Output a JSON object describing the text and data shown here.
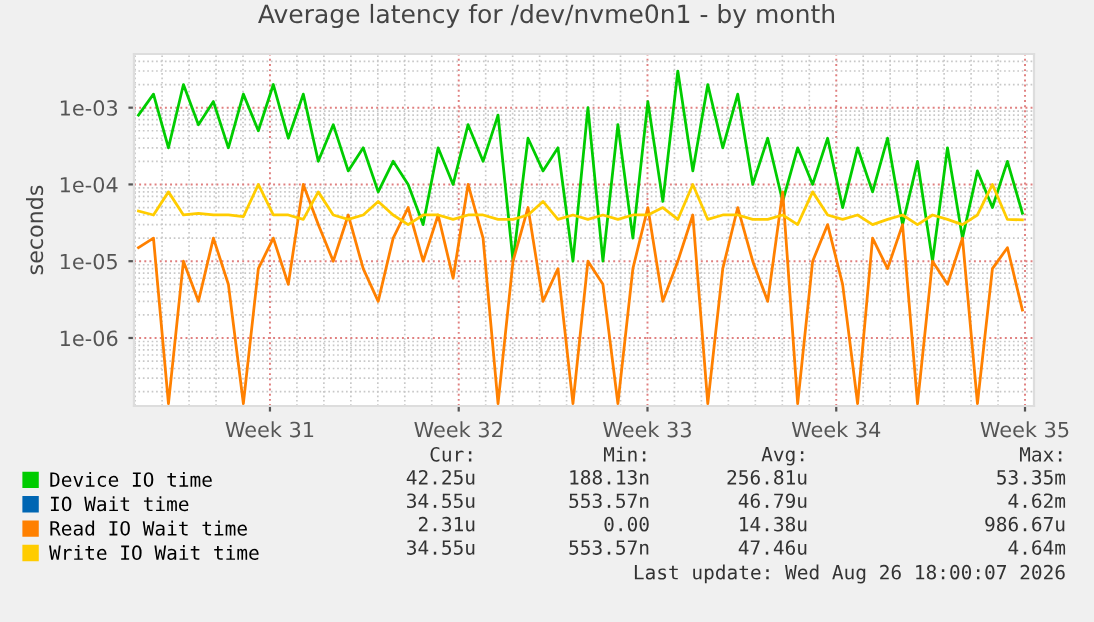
{
  "chart_data": {
    "type": "line",
    "title": "Average latency for /dev/nvme0n1 - by month",
    "ylabel": "seconds",
    "x": [
      "2026-07-22T03:00",
      "2026-07-22T16:20",
      "2026-07-23T05:40",
      "2026-07-23T19:00",
      "2026-07-24T08:20",
      "2026-07-24T21:40",
      "2026-07-25T11:00",
      "2026-07-26T00:20",
      "2026-07-26T13:40",
      "2026-07-27T03:00",
      "2026-07-27T16:20",
      "2026-07-28T05:40",
      "2026-07-28T19:00",
      "2026-07-29T08:20",
      "2026-07-29T21:40",
      "2026-07-30T11:00",
      "2026-07-31T00:20",
      "2026-07-31T13:40",
      "2026-08-01T03:00",
      "2026-08-01T16:20",
      "2026-08-02T05:40",
      "2026-08-02T19:00",
      "2026-08-03T08:20",
      "2026-08-03T21:40",
      "2026-08-04T11:00",
      "2026-08-05T00:20",
      "2026-08-05T13:40",
      "2026-08-06T03:00",
      "2026-08-06T16:20",
      "2026-08-07T05:40",
      "2026-08-07T19:00",
      "2026-08-08T08:20",
      "2026-08-08T21:40",
      "2026-08-09T11:00",
      "2026-08-10T00:20",
      "2026-08-10T13:40",
      "2026-08-11T03:00",
      "2026-08-11T16:20",
      "2026-08-12T05:40",
      "2026-08-12T19:00",
      "2026-08-13T08:20",
      "2026-08-13T21:40",
      "2026-08-14T11:00",
      "2026-08-15T00:20",
      "2026-08-15T13:40",
      "2026-08-16T03:00",
      "2026-08-16T16:20",
      "2026-08-17T05:40",
      "2026-08-17T19:00",
      "2026-08-18T08:20",
      "2026-08-18T21:40",
      "2026-08-19T11:00",
      "2026-08-20T00:20",
      "2026-08-20T13:40",
      "2026-08-21T03:00",
      "2026-08-21T16:20",
      "2026-08-22T05:40",
      "2026-08-22T19:00",
      "2026-08-23T08:20",
      "2026-08-23T21:40"
    ],
    "series": [
      {
        "name": "Device IO time",
        "color": "#00cc00",
        "values": [
          0.0008,
          0.0015,
          0.0003,
          0.002,
          0.0006,
          0.0012,
          0.0003,
          0.0015,
          0.0005,
          0.002,
          0.0004,
          0.0015,
          0.0002,
          0.0006,
          0.00015,
          0.0003,
          8e-05,
          0.0002,
          0.0001,
          3e-05,
          0.0003,
          0.0001,
          0.0006,
          0.0002,
          0.0008,
          1e-05,
          0.0004,
          0.00015,
          0.0003,
          1e-05,
          0.001,
          1e-05,
          0.0006,
          2e-05,
          0.0012,
          6e-05,
          0.003,
          0.00015,
          0.002,
          0.0003,
          0.0015,
          0.0001,
          0.0004,
          6e-05,
          0.0003,
          0.0001,
          0.0004,
          5e-05,
          0.0003,
          8e-05,
          0.0004,
          3e-05,
          0.0002,
          1e-05,
          0.0003,
          2e-05,
          0.00015,
          5e-05,
          0.0002,
          4.225e-05
        ]
      },
      {
        "name": "IO Wait time",
        "color": "#0066b3",
        "values": [
          null,
          null,
          null,
          null,
          null,
          null,
          null,
          null,
          null,
          null,
          null,
          null,
          null,
          null,
          null,
          null,
          null,
          null,
          null,
          null,
          null,
          null,
          null,
          null,
          null,
          null,
          null,
          null,
          null,
          null,
          null,
          null,
          null,
          null,
          null,
          null,
          null,
          null,
          null,
          null,
          null,
          null,
          null,
          null,
          null,
          null,
          null,
          null,
          null,
          null,
          null,
          null,
          null,
          null,
          null,
          null,
          null,
          null,
          null,
          null
        ]
      },
      {
        "name": "Read IO Wait time",
        "color": "#ff8000",
        "values": [
          1.5e-05,
          2e-05,
          1.4e-07,
          1e-05,
          3e-06,
          2e-05,
          5e-06,
          1.4e-07,
          8e-06,
          2e-05,
          5e-06,
          0.0001,
          3e-05,
          1e-05,
          4e-05,
          8e-06,
          3e-06,
          2e-05,
          5e-05,
          1e-05,
          4e-05,
          6e-06,
          0.0001,
          2e-05,
          1.4e-07,
          1e-05,
          5e-05,
          3e-06,
          8e-06,
          1.4e-07,
          1e-05,
          5e-06,
          1.4e-07,
          8e-06,
          5e-05,
          3e-06,
          1e-05,
          4e-05,
          1.4e-07,
          8e-06,
          5e-05,
          1e-05,
          3e-06,
          8e-05,
          1.4e-07,
          1e-05,
          3e-05,
          5e-06,
          1.4e-07,
          2e-05,
          8e-06,
          3e-05,
          1.4e-07,
          1e-05,
          5e-06,
          2e-05,
          1.4e-07,
          8e-06,
          1.5e-05,
          2.31e-06
        ]
      },
      {
        "name": "Write IO Wait time",
        "color": "#ffcc00",
        "values": [
          4.5e-05,
          4e-05,
          8e-05,
          4e-05,
          4.2e-05,
          4e-05,
          4e-05,
          3.8e-05,
          0.0001,
          4e-05,
          4e-05,
          3.5e-05,
          8e-05,
          4e-05,
          3.5e-05,
          4e-05,
          6e-05,
          4e-05,
          3e-05,
          4e-05,
          4e-05,
          3.5e-05,
          4e-05,
          4e-05,
          3.5e-05,
          3.5e-05,
          4e-05,
          6e-05,
          3.5e-05,
          4e-05,
          3.5e-05,
          4e-05,
          3.5e-05,
          4e-05,
          4e-05,
          5e-05,
          3.5e-05,
          0.0001,
          3.5e-05,
          4e-05,
          4e-05,
          3.5e-05,
          3.5e-05,
          4e-05,
          3e-05,
          8e-05,
          4e-05,
          3.5e-05,
          4e-05,
          3e-05,
          3.5e-05,
          4e-05,
          3e-05,
          4e-05,
          3.5e-05,
          3e-05,
          4e-05,
          0.0001,
          3.5e-05,
          3.455e-05
        ]
      }
    ],
    "log": "y",
    "ylim": [
      1.3e-07,
      0.005
    ],
    "yticks": [
      {
        "value": 1e-06,
        "label": "1e-06"
      },
      {
        "value": 1e-05,
        "label": "1e-05"
      },
      {
        "value": 0.0001,
        "label": "1e-04"
      },
      {
        "value": 0.001,
        "label": "1e-03"
      }
    ],
    "xlim": [
      "2026-07-21T23:00",
      "2026-08-24T08:00"
    ],
    "xticks": [
      {
        "value": "2026-07-27",
        "label": "Week 31"
      },
      {
        "value": "2026-08-03",
        "label": "Week 32"
      },
      {
        "value": "2026-08-10",
        "label": "Week 33"
      },
      {
        "value": "2026-08-17",
        "label": "Week 34"
      },
      {
        "value": "2026-08-24",
        "label": "Week 35"
      }
    ],
    "grid": true,
    "legend": "bottom",
    "marker": "none",
    "line_style": "solid",
    "annotations": [
      "Cur:",
      "Min:",
      "Avg:",
      "Max:",
      "42.25u",
      "188.13n",
      "256.81u",
      "53.35m",
      "34.55u",
      "553.57n",
      "46.79u",
      "4.62m",
      "2.31u",
      "0.00",
      "14.38u",
      "986.67u",
      "34.55u",
      "553.57n",
      "47.46u",
      "4.64m",
      "Last update: Wed Aug 26 18:00:07 2026"
    ]
  }
}
